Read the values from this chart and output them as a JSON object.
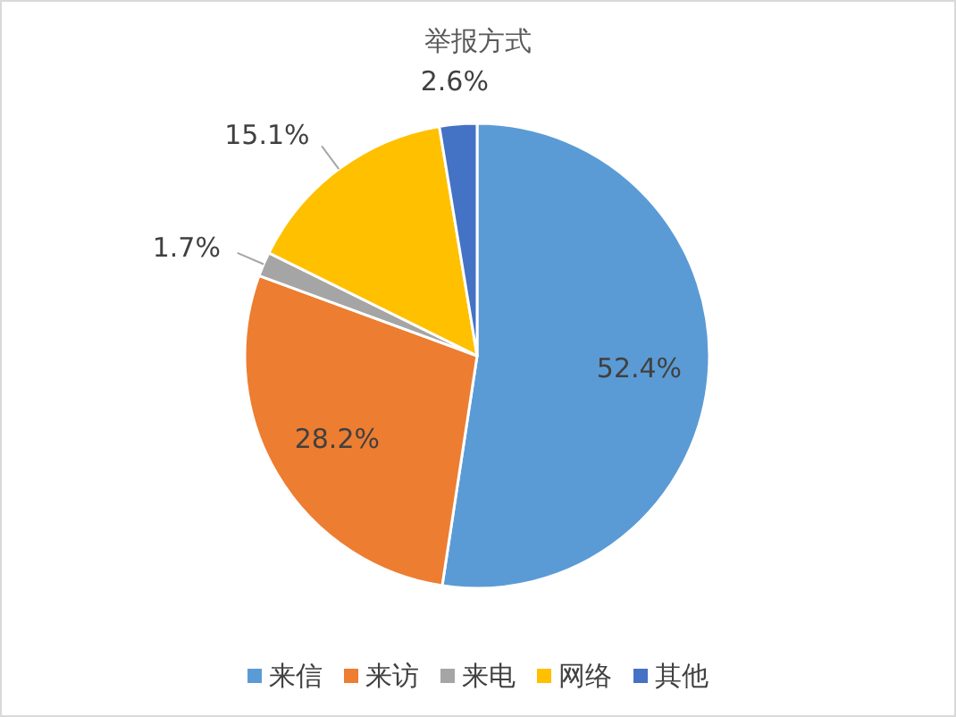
{
  "chart_data": {
    "type": "pie",
    "title": "举报方式",
    "categories": [
      "来信",
      "来访",
      "来电",
      "网络",
      "其他"
    ],
    "values": [
      52.4,
      28.2,
      1.7,
      15.1,
      2.6
    ],
    "colors": [
      "#5b9bd5",
      "#ed7d31",
      "#a5a5a5",
      "#ffc000",
      "#4472c4"
    ],
    "value_labels": [
      "52.4%",
      "28.2%",
      "1.7%",
      "15.1%",
      "2.6%"
    ],
    "legend": "bottom"
  }
}
